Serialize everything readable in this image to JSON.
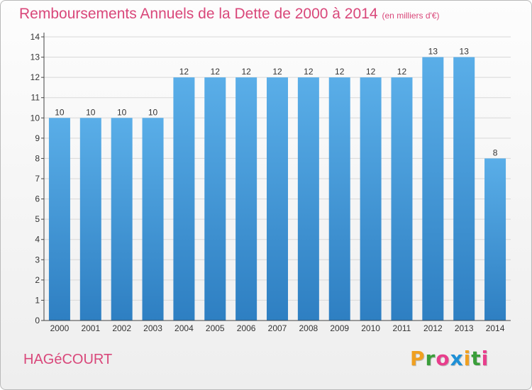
{
  "title": "Remboursements Annuels de la Dette de 2000 à 2014",
  "unit": "(en milliers d'€)",
  "commune": "HAGéCOURT",
  "brand": [
    "P",
    "r",
    "o",
    "x",
    "i",
    "t",
    "i"
  ],
  "brand_colors": [
    "#f0a020",
    "#3a9e3a",
    "#e83e8c",
    "#1e90d6",
    "#f0a020",
    "#3a9e3a",
    "#e83e8c"
  ],
  "colors": {
    "title": "#d9477a",
    "bar_top": "#5aaee8",
    "bar_bottom": "#2e7fc2",
    "axis": "#444444",
    "grid": "#d8d8d8"
  },
  "chart_data": {
    "type": "bar",
    "categories": [
      "2000",
      "2001",
      "2002",
      "2003",
      "2004",
      "2005",
      "2006",
      "2007",
      "2008",
      "2009",
      "2010",
      "2011",
      "2012",
      "2013",
      "2014"
    ],
    "values": [
      10,
      10,
      10,
      10,
      12,
      12,
      12,
      12,
      12,
      12,
      12,
      12,
      13,
      13,
      8
    ],
    "data_labels": [
      "10",
      "10",
      "10",
      "10",
      "12",
      "12",
      "12",
      "12",
      "12",
      "12",
      "12",
      "12",
      "13",
      "13",
      "8"
    ],
    "yticks": [
      "0",
      "1",
      "2",
      "3",
      "4",
      "5",
      "6",
      "7",
      "8",
      "9",
      "10",
      "11",
      "12",
      "13",
      "14"
    ],
    "ylim": [
      0,
      14
    ],
    "grid": true,
    "xlabel": "",
    "ylabel": ""
  }
}
